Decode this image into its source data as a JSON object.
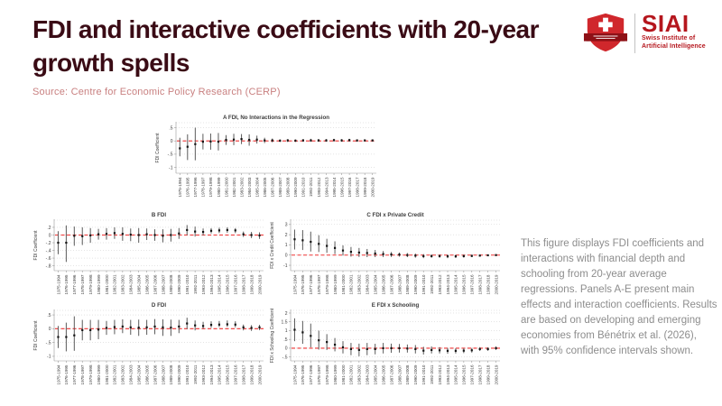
{
  "header": {
    "title": "FDI and interactive coefficients with 20-year growth spells",
    "logo": {
      "acronym": "SIAI",
      "line1": "Swiss Institute of",
      "line2": "Artificial Intelligence"
    }
  },
  "source": {
    "label": "Source: Centre for Economic Policy Research (CERP)"
  },
  "description": "This figure displays FDI coefficients and interactions with financial depth and schooling from 20-year average regressions. Panels A-E present main effects and interaction coefficients. Results are based on developing and emerging economies from Bénétrix et al. (2026), with 95% confidence intervals shown.",
  "colors": {
    "title_maroon": "#3a0b15",
    "source_rose": "#c98181",
    "logo_red": "#b5161d",
    "shield_red": "#d0272c",
    "banner_dark_red": "#8e1016",
    "zero_line_red": "#ee3333",
    "gridline_gray": "#c9c9c9",
    "errorbar_gray": "#5a5a5a",
    "point_black": "#141414",
    "axis_gray": "#999999",
    "panel_text": "#3c3c3c",
    "description_gray": "#8d8d8d"
  },
  "chart_data": {
    "type": "scatter",
    "subtype": "coefficient-errorbar-multipanel",
    "ci_note": "95% confidence intervals",
    "grid": true,
    "categories": [
      "1975-1994",
      "1976-1995",
      "1977-1996",
      "1978-1997",
      "1979-1998",
      "1980-1999",
      "1981-2000",
      "1982-2001",
      "1983-2002",
      "1984-2003",
      "1985-2004",
      "1986-2005",
      "1987-2006",
      "1988-2007",
      "1989-2008",
      "1990-2009",
      "1991-2010",
      "1992-2011",
      "1993-2012",
      "1994-2013",
      "1995-2014",
      "1996-2015",
      "1997-2016",
      "1998-2017",
      "1999-2018",
      "2000-2019"
    ],
    "panels": [
      {
        "key": "A",
        "title": "A FDI, No Interactions in the Regression",
        "ylabel": "FDI Coefficient",
        "ylim": [
          -1.15,
          0.62
        ],
        "yticks": [
          {
            "label": ".5",
            "v": 0.5
          },
          {
            "label": "0",
            "v": 0
          },
          {
            "label": "-.5",
            "v": -0.5
          },
          {
            "label": "-1",
            "v": -1
          }
        ],
        "values": [
          -0.28,
          -0.22,
          -0.12,
          -0.03,
          -0.02,
          -0.03,
          0.04,
          0.05,
          0.07,
          0.04,
          0.05,
          0.02,
          0.02,
          0.01,
          0.02,
          0.01,
          0.02,
          0.02,
          0.02,
          0.02,
          0.03,
          0.02,
          0.03,
          0.02,
          0.02,
          0.02
        ],
        "lo": [
          -0.58,
          -0.72,
          -0.73,
          -0.32,
          -0.33,
          -0.36,
          -0.15,
          -0.16,
          -0.12,
          -0.18,
          -0.1,
          -0.08,
          -0.05,
          -0.04,
          -0.04,
          -0.04,
          -0.03,
          -0.03,
          -0.03,
          -0.03,
          -0.02,
          -0.03,
          -0.02,
          -0.03,
          -0.02,
          -0.02
        ],
        "hi": [
          0.12,
          0.25,
          0.5,
          0.27,
          0.28,
          0.3,
          0.22,
          0.27,
          0.26,
          0.25,
          0.2,
          0.12,
          0.09,
          0.06,
          0.07,
          0.06,
          0.07,
          0.08,
          0.07,
          0.07,
          0.08,
          0.07,
          0.08,
          0.06,
          0.06,
          0.06
        ]
      },
      {
        "key": "B",
        "title": "B FDI",
        "ylabel": "FDI Coefficient",
        "ylim": [
          -0.88,
          0.34
        ],
        "yticks": [
          {
            "label": ".2",
            "v": 0.2
          },
          {
            "label": "0",
            "v": 0
          },
          {
            "label": "-.2",
            "v": -0.2
          },
          {
            "label": "-.4",
            "v": -0.4
          },
          {
            "label": "-.6",
            "v": -0.6
          },
          {
            "label": "-.8",
            "v": -0.8
          }
        ],
        "values": [
          -0.2,
          -0.2,
          -0.02,
          -0.03,
          -0.01,
          0.02,
          0.03,
          0.05,
          0.03,
          0.01,
          0.0,
          0.02,
          0.0,
          -0.02,
          0.0,
          0.04,
          0.13,
          0.09,
          0.08,
          0.11,
          0.12,
          0.13,
          0.12,
          0.02,
          0.0,
          -0.01
        ],
        "lo": [
          -0.5,
          -0.7,
          -0.28,
          -0.26,
          -0.2,
          -0.12,
          -0.12,
          -0.1,
          -0.15,
          -0.16,
          -0.2,
          -0.13,
          -0.15,
          -0.19,
          -0.17,
          -0.1,
          0.0,
          -0.04,
          -0.01,
          0.04,
          0.05,
          0.06,
          0.05,
          -0.05,
          -0.08,
          -0.1
        ],
        "hi": [
          0.1,
          0.25,
          0.22,
          0.2,
          0.18,
          0.16,
          0.18,
          0.2,
          0.2,
          0.17,
          0.18,
          0.17,
          0.15,
          0.15,
          0.16,
          0.18,
          0.26,
          0.22,
          0.17,
          0.18,
          0.19,
          0.2,
          0.18,
          0.09,
          0.08,
          0.07
        ]
      },
      {
        "key": "C",
        "title": "C FDI x Private Credit",
        "ylabel": "FDI x Credit Coefficient",
        "ylim": [
          -1.35,
          3.25
        ],
        "yticks": [
          {
            "label": "3",
            "v": 3
          },
          {
            "label": "2",
            "v": 2
          },
          {
            "label": "1",
            "v": 1
          },
          {
            "label": "0",
            "v": 0
          },
          {
            "label": "-1",
            "v": -1
          }
        ],
        "values": [
          1.55,
          1.45,
          1.3,
          1.1,
          0.9,
          0.7,
          0.45,
          0.32,
          0.25,
          0.2,
          0.15,
          0.1,
          0.06,
          0.05,
          0.0,
          -0.05,
          -0.1,
          -0.1,
          -0.1,
          -0.12,
          -0.12,
          -0.1,
          -0.08,
          -0.05,
          -0.02,
          0.0
        ],
        "lo": [
          0.55,
          0.5,
          0.35,
          0.3,
          0.22,
          0.1,
          -0.05,
          -0.15,
          -0.18,
          -0.2,
          -0.2,
          -0.2,
          -0.18,
          -0.15,
          -0.2,
          -0.25,
          -0.3,
          -0.26,
          -0.26,
          -0.3,
          -0.28,
          -0.25,
          -0.2,
          -0.15,
          -0.1,
          -0.08
        ],
        "hi": [
          2.5,
          2.45,
          2.3,
          1.95,
          1.6,
          1.35,
          0.95,
          0.8,
          0.7,
          0.6,
          0.5,
          0.4,
          0.3,
          0.25,
          0.2,
          0.15,
          0.1,
          0.06,
          0.06,
          0.05,
          0.04,
          0.05,
          0.05,
          0.05,
          0.06,
          0.08
        ]
      },
      {
        "key": "D",
        "title": "D FDI",
        "ylabel": "FDI Coefficient",
        "ylim": [
          -1.1,
          0.6
        ],
        "yticks": [
          {
            "label": ".5",
            "v": 0.5
          },
          {
            "label": "0",
            "v": 0
          },
          {
            "label": "-.5",
            "v": -0.5
          },
          {
            "label": "-1",
            "v": -1
          }
        ],
        "values": [
          -0.3,
          -0.3,
          -0.24,
          -0.05,
          -0.05,
          -0.03,
          0.03,
          0.06,
          0.08,
          0.05,
          0.04,
          0.05,
          0.08,
          0.05,
          0.04,
          0.08,
          0.19,
          0.12,
          0.1,
          0.14,
          0.15,
          0.16,
          0.15,
          0.05,
          0.03,
          0.05
        ],
        "lo": [
          -0.7,
          -0.82,
          -0.8,
          -0.42,
          -0.42,
          -0.38,
          -0.22,
          -0.2,
          -0.16,
          -0.22,
          -0.26,
          -0.22,
          -0.2,
          -0.26,
          -0.26,
          -0.16,
          -0.01,
          -0.06,
          0.0,
          0.04,
          0.06,
          0.07,
          0.05,
          -0.06,
          -0.08,
          -0.05
        ],
        "hi": [
          0.1,
          0.22,
          0.45,
          0.32,
          0.32,
          0.32,
          0.28,
          0.32,
          0.34,
          0.32,
          0.33,
          0.32,
          0.35,
          0.34,
          0.33,
          0.32,
          0.4,
          0.3,
          0.25,
          0.27,
          0.28,
          0.3,
          0.27,
          0.15,
          0.13,
          0.14
        ]
      },
      {
        "key": "E",
        "title": "E FDI x Schooling",
        "ylabel": "FDI x Schooling Coefficient",
        "ylim": [
          -0.62,
          2.05
        ],
        "yticks": [
          {
            "label": "2",
            "v": 2
          },
          {
            "label": "1.5",
            "v": 1.5
          },
          {
            "label": "1",
            "v": 1
          },
          {
            "label": ".5",
            "v": 0.5
          },
          {
            "label": "0",
            "v": 0
          },
          {
            "label": "-.5",
            "v": -0.5
          }
        ],
        "values": [
          1.05,
          0.9,
          0.7,
          0.45,
          0.35,
          0.2,
          0.05,
          -0.05,
          -0.1,
          -0.05,
          -0.05,
          0.0,
          0.0,
          0.0,
          -0.02,
          -0.05,
          -0.14,
          -0.1,
          -0.12,
          -0.15,
          -0.15,
          -0.14,
          -0.12,
          -0.05,
          -0.05,
          0.0
        ],
        "lo": [
          0.4,
          0.25,
          0.05,
          -0.08,
          -0.1,
          -0.18,
          -0.3,
          -0.4,
          -0.46,
          -0.4,
          -0.35,
          -0.3,
          -0.26,
          -0.25,
          -0.25,
          -0.3,
          -0.36,
          -0.3,
          -0.3,
          -0.31,
          -0.3,
          -0.28,
          -0.25,
          -0.16,
          -0.15,
          -0.1
        ],
        "hi": [
          1.7,
          1.55,
          1.4,
          1.0,
          0.8,
          0.58,
          0.4,
          0.3,
          0.26,
          0.3,
          0.25,
          0.3,
          0.26,
          0.24,
          0.21,
          0.18,
          0.08,
          0.1,
          0.06,
          0.01,
          0.0,
          0.0,
          0.01,
          0.06,
          0.05,
          0.1
        ]
      }
    ]
  }
}
